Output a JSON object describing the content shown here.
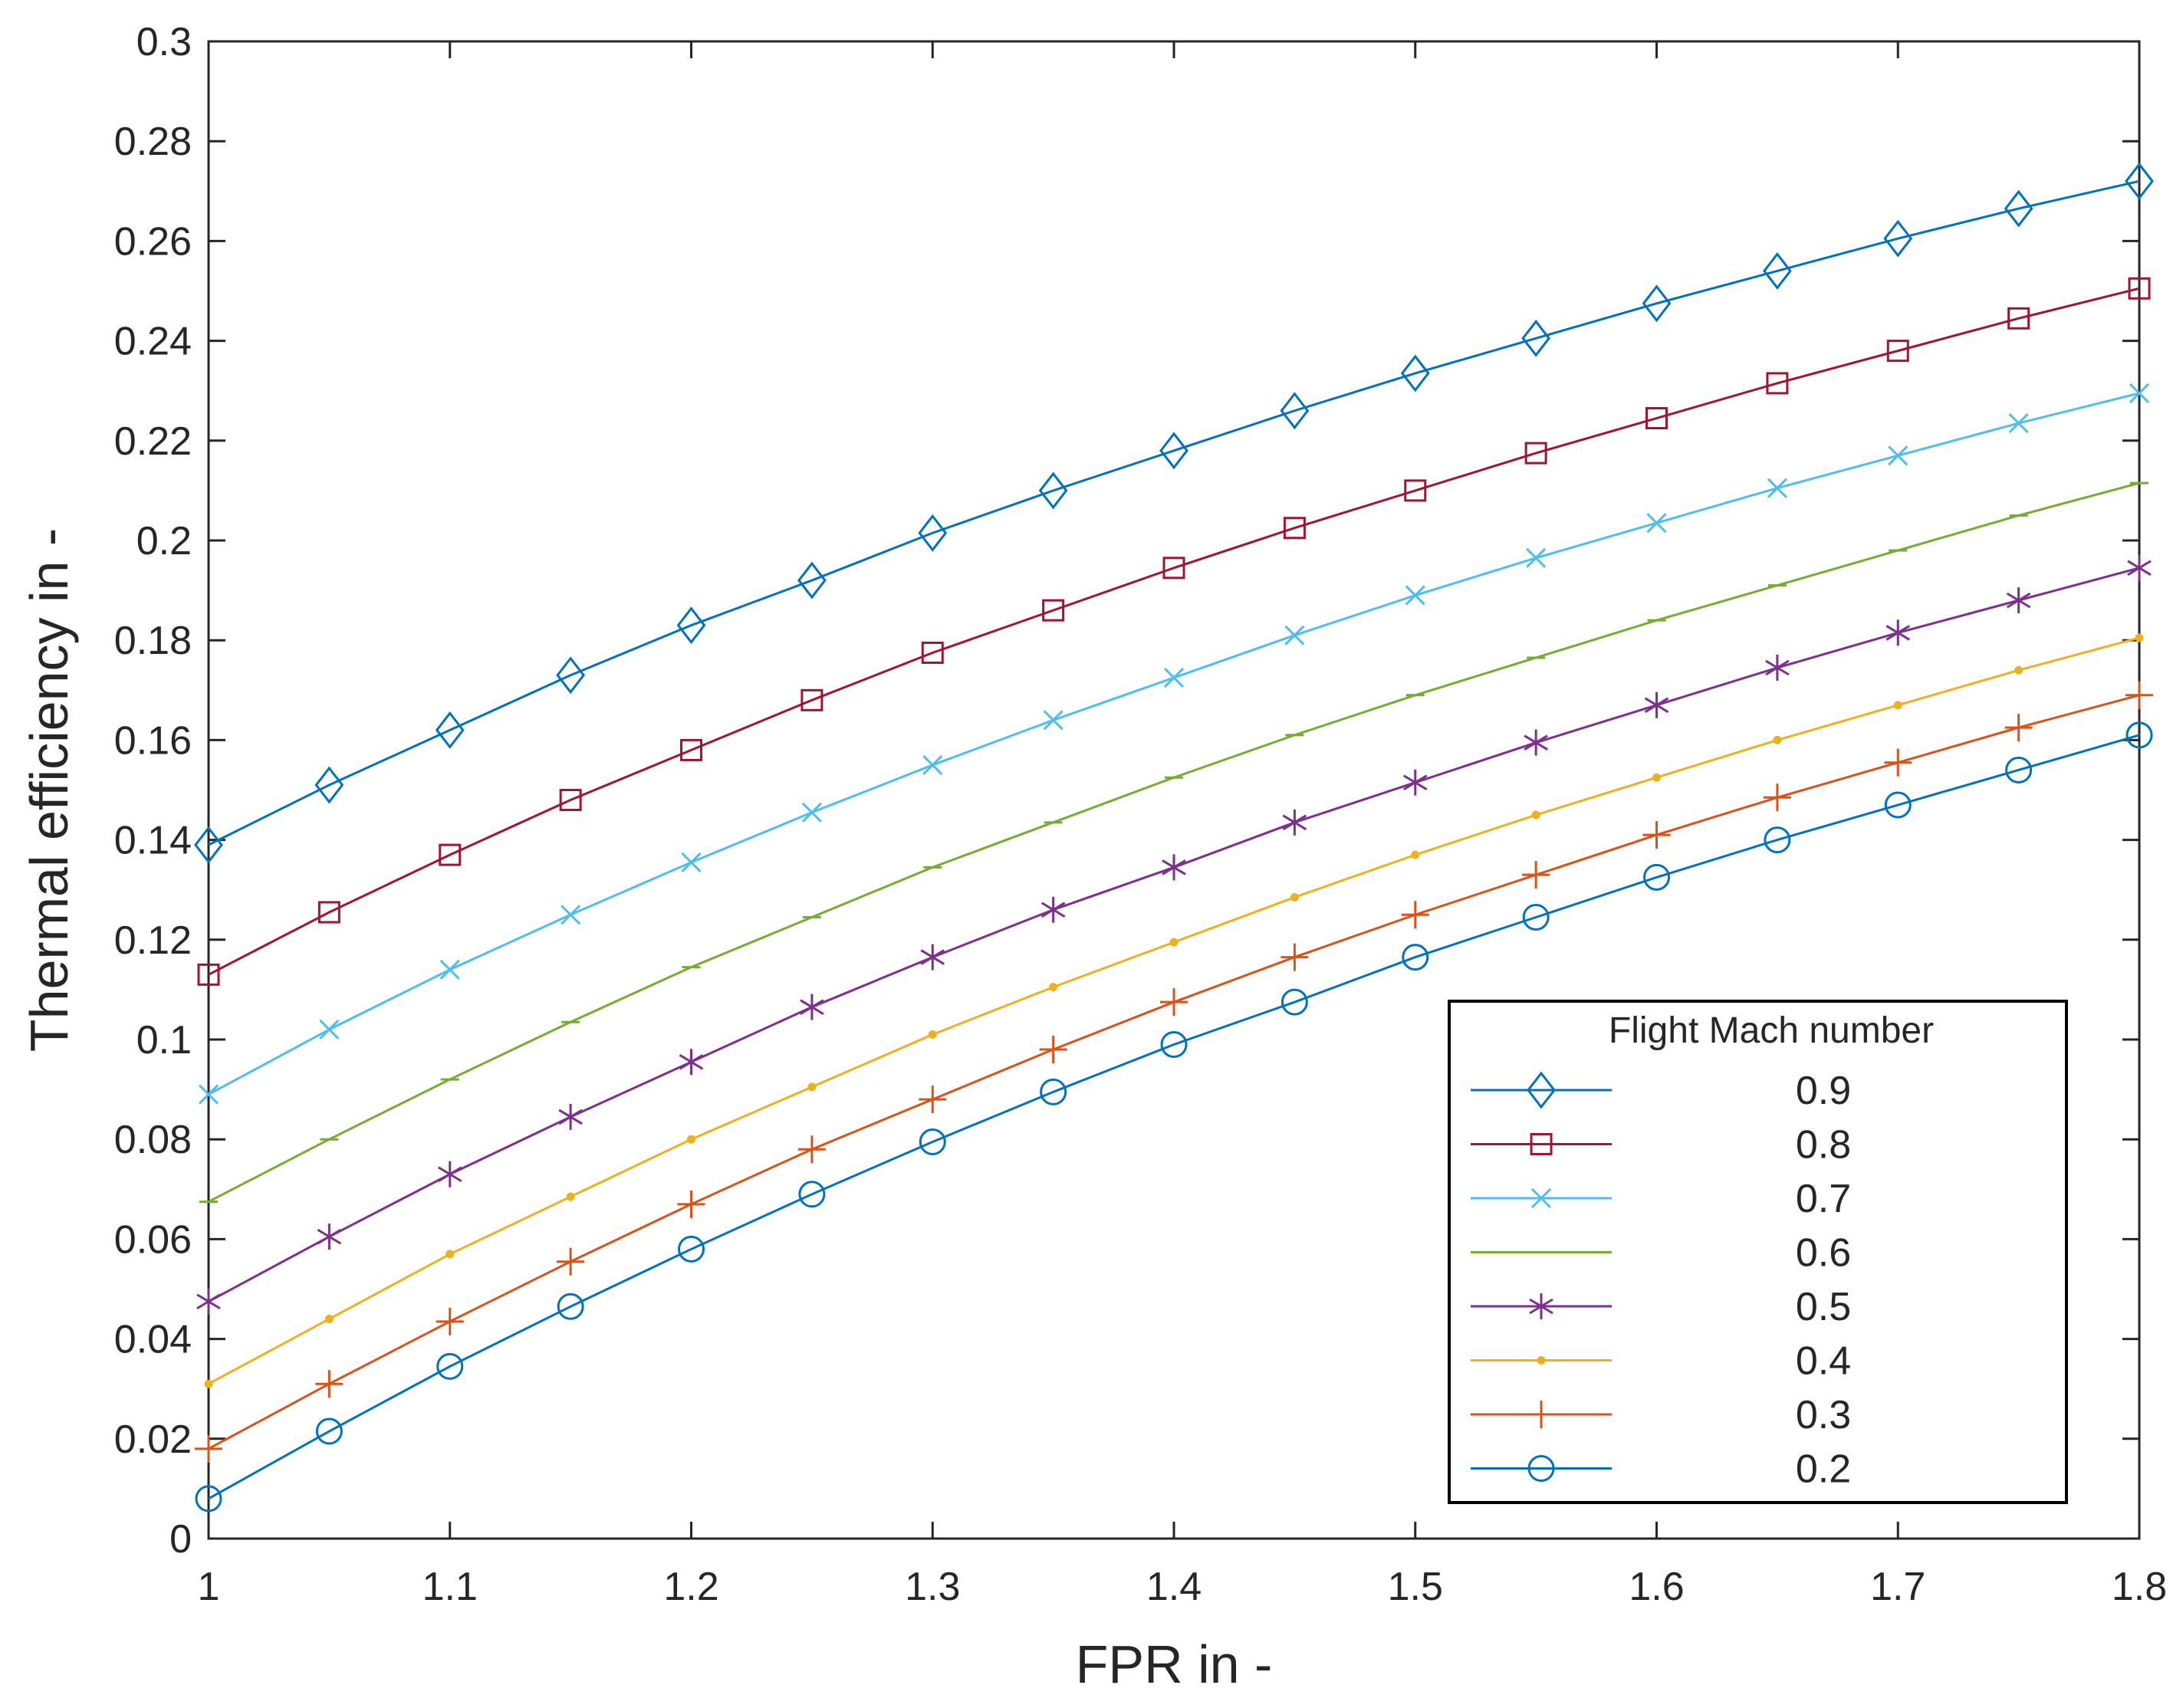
{
  "chart_data": {
    "type": "line",
    "title": "",
    "xlabel": "FPR in -",
    "ylabel": "Thermal efficiency in -",
    "xlim": [
      1,
      1.8
    ],
    "ylim": [
      0,
      0.3
    ],
    "grid": false,
    "xticks": [
      1,
      1.1,
      1.2,
      1.3,
      1.4,
      1.5,
      1.6,
      1.7,
      1.8
    ],
    "xtick_labels": [
      "1",
      "1.1",
      "1.2",
      "1.3",
      "1.4",
      "1.5",
      "1.6",
      "1.7",
      "1.8"
    ],
    "yticks": [
      0,
      0.02,
      0.04,
      0.06,
      0.08,
      0.1,
      0.12,
      0.14,
      0.16,
      0.18,
      0.2,
      0.22,
      0.24,
      0.26,
      0.28,
      0.3
    ],
    "ytick_labels": [
      "0",
      "0.02",
      "0.04",
      "0.06",
      "0.08",
      "0.1",
      "0.12",
      "0.14",
      "0.16",
      "0.18",
      "0.2",
      "0.22",
      "0.24",
      "0.26",
      "0.28",
      "0.3"
    ],
    "legend_title": "Flight Mach number",
    "legend_position": "bottom-right",
    "x": [
      1,
      1.05,
      1.1,
      1.15,
      1.2,
      1.25,
      1.3,
      1.35,
      1.4,
      1.45,
      1.5,
      1.55,
      1.6,
      1.65,
      1.7,
      1.75,
      1.8
    ],
    "series": [
      {
        "name": "0.9",
        "color": "#0072BD",
        "marker": "diamond",
        "values": [
          0.139,
          0.151,
          0.162,
          0.173,
          0.183,
          0.192,
          0.2015,
          0.21,
          0.218,
          0.226,
          0.2335,
          0.2405,
          0.2475,
          0.254,
          0.2605,
          0.2665,
          0.272
        ]
      },
      {
        "name": "0.8",
        "color": "#A2142F",
        "marker": "square",
        "values": [
          0.113,
          0.1255,
          0.137,
          0.148,
          0.158,
          0.168,
          0.1775,
          0.186,
          0.1945,
          0.2025,
          0.21,
          0.2175,
          0.2245,
          0.2315,
          0.238,
          0.2445,
          0.2505
        ]
      },
      {
        "name": "0.7",
        "color": "#4DBEEE",
        "marker": "x",
        "values": [
          0.089,
          0.102,
          0.114,
          0.125,
          0.1355,
          0.1455,
          0.155,
          0.164,
          0.1725,
          0.181,
          0.189,
          0.1965,
          0.2035,
          0.2105,
          0.217,
          0.2235,
          0.2295
        ]
      },
      {
        "name": "0.6",
        "color": "#77AC30",
        "marker": "dash",
        "values": [
          0.0675,
          0.08,
          0.092,
          0.1035,
          0.1145,
          0.1245,
          0.1345,
          0.1435,
          0.1525,
          0.161,
          0.169,
          0.1765,
          0.184,
          0.191,
          0.198,
          0.205,
          0.2115
        ]
      },
      {
        "name": "0.5",
        "color": "#7E2F8E",
        "marker": "asterisk",
        "values": [
          0.0475,
          0.0605,
          0.073,
          0.0845,
          0.0955,
          0.1065,
          0.1165,
          0.126,
          0.1345,
          0.1435,
          0.1515,
          0.1595,
          0.167,
          0.1745,
          0.1815,
          0.188,
          0.1945
        ]
      },
      {
        "name": "0.4",
        "color": "#EDB120",
        "marker": "point",
        "values": [
          0.031,
          0.044,
          0.057,
          0.0685,
          0.08,
          0.0905,
          0.101,
          0.1105,
          0.1195,
          0.1285,
          0.137,
          0.145,
          0.1525,
          0.16,
          0.167,
          0.174,
          0.1805
        ]
      },
      {
        "name": "0.3",
        "color": "#D95319",
        "marker": "plus",
        "values": [
          0.018,
          0.031,
          0.0435,
          0.0555,
          0.067,
          0.078,
          0.088,
          0.098,
          0.1075,
          0.1165,
          0.125,
          0.133,
          0.141,
          0.1485,
          0.1555,
          0.1625,
          0.169
        ]
      },
      {
        "name": "0.2",
        "color": "#0072BD",
        "marker": "circle",
        "values": [
          0.008,
          0.0215,
          0.0345,
          0.0465,
          0.058,
          0.069,
          0.0795,
          0.0895,
          0.099,
          0.1075,
          0.1165,
          0.1245,
          0.1325,
          0.14,
          0.147,
          0.154,
          0.161
        ]
      }
    ]
  }
}
